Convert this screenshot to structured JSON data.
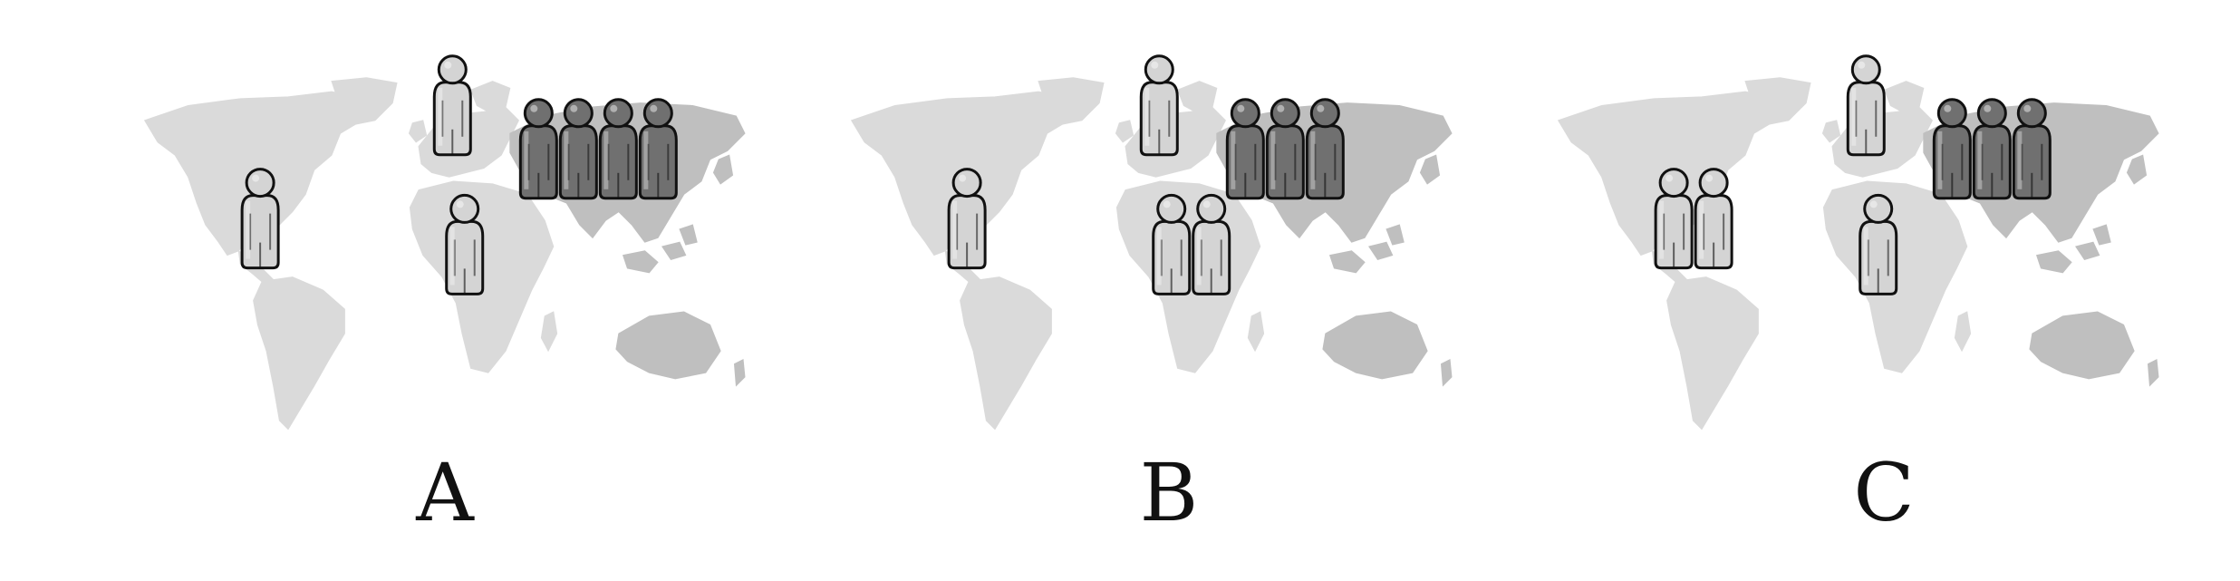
{
  "panels": [
    {
      "label": "A",
      "groups": [
        {
          "region": "north-america",
          "count": 1,
          "shade": "light"
        },
        {
          "region": "europe",
          "count": 1,
          "shade": "light"
        },
        {
          "region": "africa",
          "count": 1,
          "shade": "light"
        },
        {
          "region": "asia",
          "count": 4,
          "shade": "dark"
        }
      ]
    },
    {
      "label": "B",
      "groups": [
        {
          "region": "north-america",
          "count": 1,
          "shade": "light"
        },
        {
          "region": "europe",
          "count": 1,
          "shade": "light"
        },
        {
          "region": "africa",
          "count": 2,
          "shade": "light"
        },
        {
          "region": "asia",
          "count": 3,
          "shade": "dark"
        }
      ]
    },
    {
      "label": "C",
      "groups": [
        {
          "region": "north-america",
          "count": 2,
          "shade": "light"
        },
        {
          "region": "europe",
          "count": 1,
          "shade": "light"
        },
        {
          "region": "africa",
          "count": 1,
          "shade": "light"
        },
        {
          "region": "asia",
          "count": 3,
          "shade": "dark"
        }
      ]
    }
  ],
  "colors": {
    "land_light": "#dadada",
    "land_dark": "#bfbfbf",
    "figure_light": "#d4d4d4",
    "figure_dark": "#707070",
    "outline": "#111111"
  }
}
